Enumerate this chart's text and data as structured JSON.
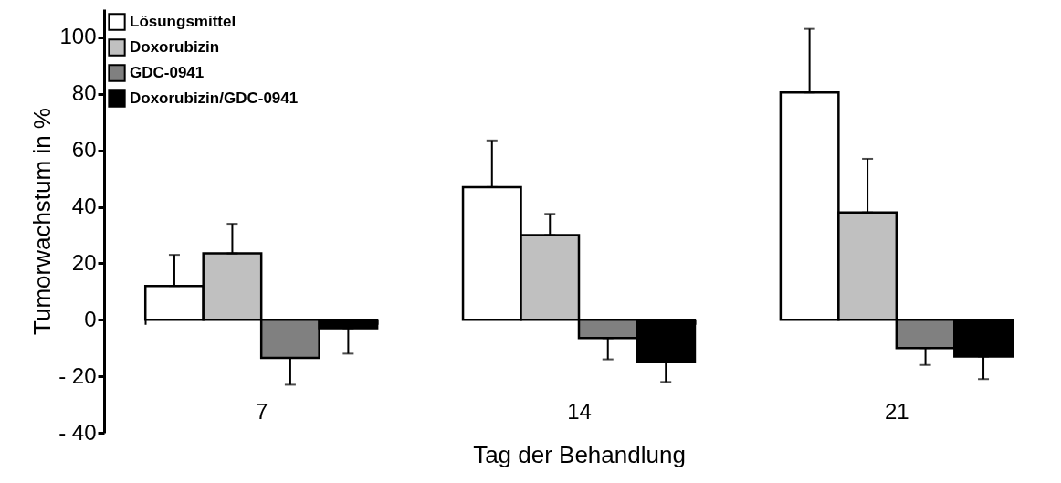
{
  "chart_data": {
    "type": "bar",
    "xlabel": "Tag der Behandlung",
    "ylabel": "Tumorwachstum in %",
    "categories": [
      "7",
      "14",
      "21"
    ],
    "series": [
      {
        "name": "Lösungsmittel",
        "color": "#ffffff",
        "values": [
          12,
          47,
          80.5
        ],
        "errors": [
          [
            12,
            23
          ],
          [
            47,
            63.5
          ],
          [
            80.5,
            103
          ]
        ]
      },
      {
        "name": "Doxorubizin",
        "color": "#c0c0c0",
        "values": [
          23.5,
          30,
          38
        ],
        "errors": [
          [
            23.5,
            34
          ],
          [
            30,
            37.5
          ],
          [
            38,
            57
          ]
        ]
      },
      {
        "name": "GDC-0941",
        "color": "#808080",
        "values": [
          -13.5,
          -6.5,
          -10
        ],
        "errors": [
          [
            -23,
            -13.5
          ],
          [
            -14,
            -6.5
          ],
          [
            -16,
            -10
          ]
        ]
      },
      {
        "name": "Doxorubizin/GDC-0941",
        "color": "#000000",
        "values": [
          -3,
          -15,
          -13
        ],
        "errors": [
          [
            -12,
            -3
          ],
          [
            -22,
            -15
          ],
          [
            -21,
            -13
          ]
        ]
      }
    ],
    "ylim": [
      -40,
      110
    ],
    "yticks": [
      {
        "value": -40,
        "label": "- 40"
      },
      {
        "value": -20,
        "label": "- 20"
      },
      0,
      20,
      40,
      60,
      80,
      100
    ],
    "grid": false,
    "legend": "top left"
  }
}
